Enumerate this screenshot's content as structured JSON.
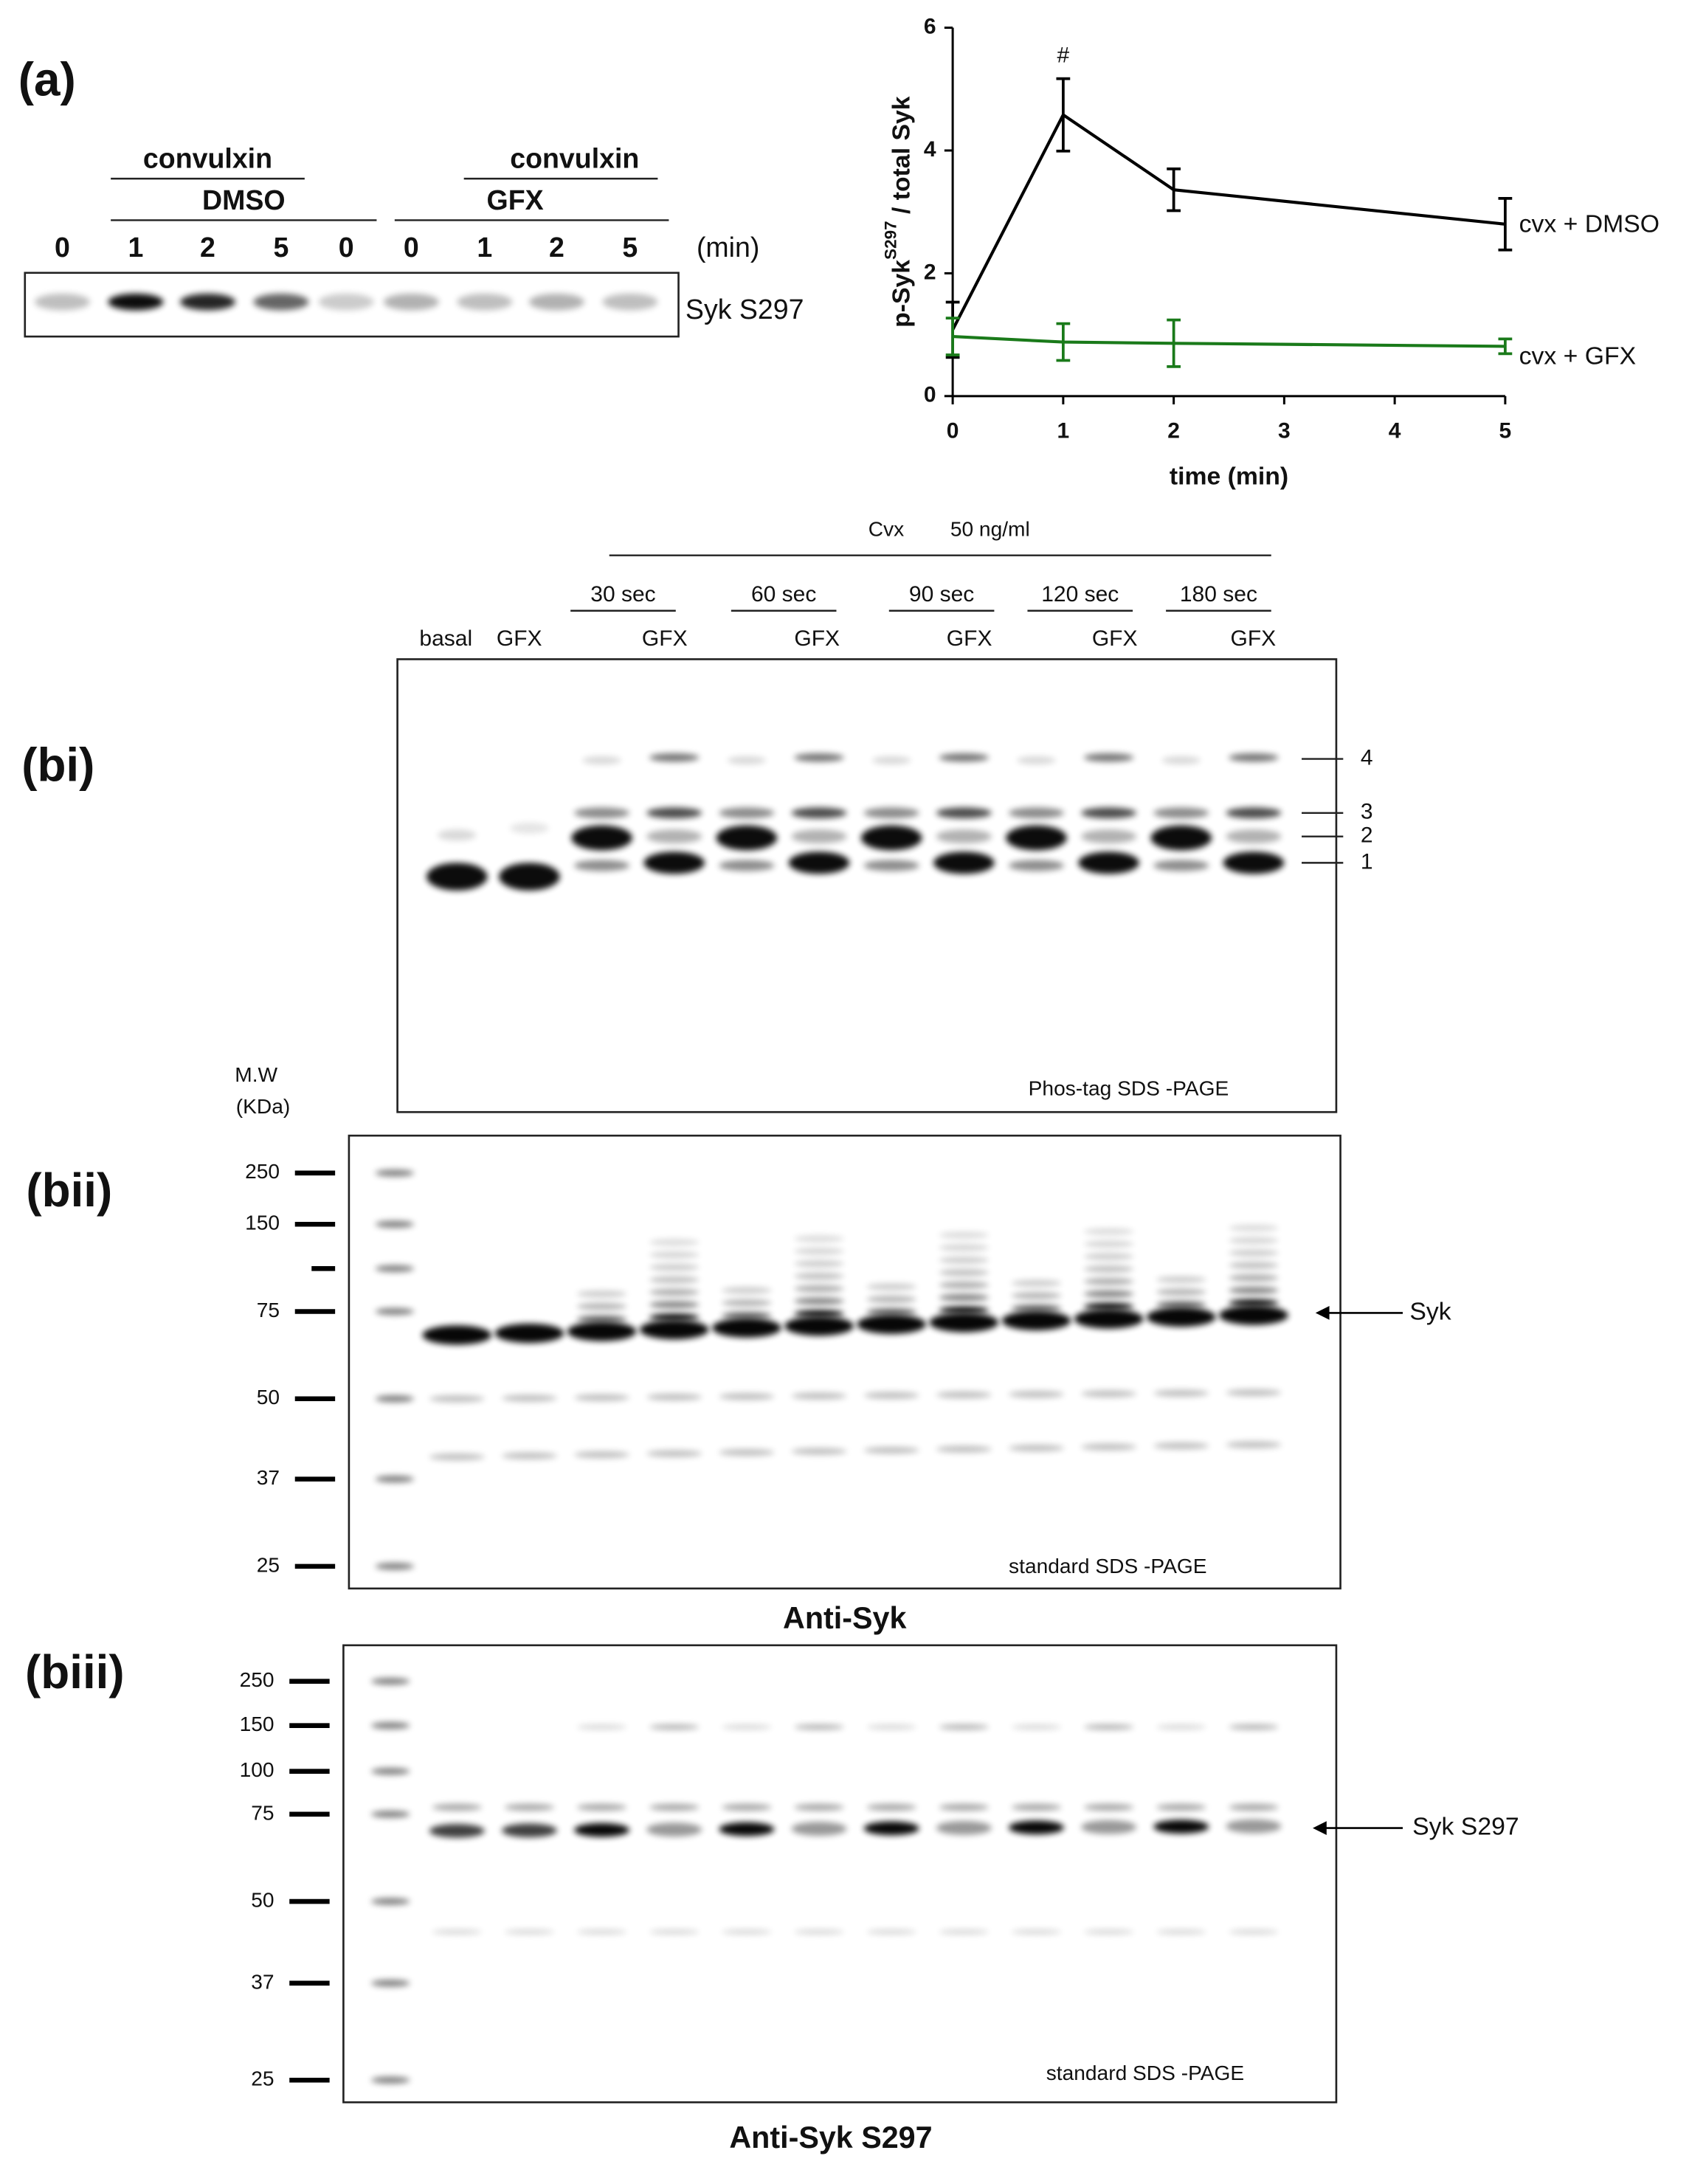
{
  "panel_a": {
    "label": "(a)",
    "group_labels": [
      "convulxin",
      "convulxin"
    ],
    "treatments": [
      "DMSO",
      "GFX"
    ],
    "lanes": [
      "0",
      "1",
      "2",
      "5",
      "0",
      "0",
      "1",
      "2",
      "5"
    ],
    "unit": "(min)",
    "band_label": "Syk S297"
  },
  "chart_data": {
    "type": "line",
    "ylabel": {
      "text_before": "p-Syk",
      "superscript": "S297",
      "text_after": " / total Syk"
    },
    "xlabel": "time (min)",
    "annotation": "#",
    "x": [
      0,
      1,
      2,
      5
    ],
    "xlim": [
      0,
      5
    ],
    "xticks": [
      0,
      1,
      2,
      3,
      4,
      5
    ],
    "ylim": [
      0,
      6
    ],
    "yticks": [
      0,
      2,
      4,
      6
    ],
    "series": [
      {
        "name": "cvx + DMSO",
        "color": "#000000",
        "values": [
          1.08,
          4.58,
          3.36,
          2.8
        ],
        "errors": [
          0.45,
          0.59,
          0.34,
          0.42
        ]
      },
      {
        "name": "cvx + GFX",
        "color": "#1a7a1a",
        "values": [
          0.97,
          0.88,
          0.86,
          0.81
        ],
        "errors": [
          0.3,
          0.3,
          0.38,
          0.12
        ]
      }
    ]
  },
  "panel_bi": {
    "label": "(bi)",
    "treatment": "Cvx",
    "dose": "50 ng/ml",
    "times": [
      "30 sec",
      "60 sec",
      "90 sec",
      "120 sec",
      "180 sec"
    ],
    "lanes": [
      "basal",
      "GFX",
      "GFX",
      "GFX",
      "GFX",
      "GFX",
      "GFX"
    ],
    "band_numbers": [
      "4",
      "3",
      "2",
      "1"
    ],
    "caption": "Phos-tag SDS -PAGE"
  },
  "panel_bii": {
    "label": "(bii)",
    "mw_title": "M.W",
    "mw_unit": "(KDa)",
    "markers": [
      "250",
      "150",
      "75",
      "50",
      "37",
      "25"
    ],
    "band_label": "Syk",
    "caption": "standard SDS -PAGE",
    "title": "Anti-Syk"
  },
  "panel_biii": {
    "label": "(biii)",
    "markers": [
      "250",
      "150",
      "100",
      "75",
      "50",
      "37",
      "25"
    ],
    "band_label": "Syk S297",
    "caption": "standard SDS -PAGE",
    "title": "Anti-Syk S297"
  }
}
